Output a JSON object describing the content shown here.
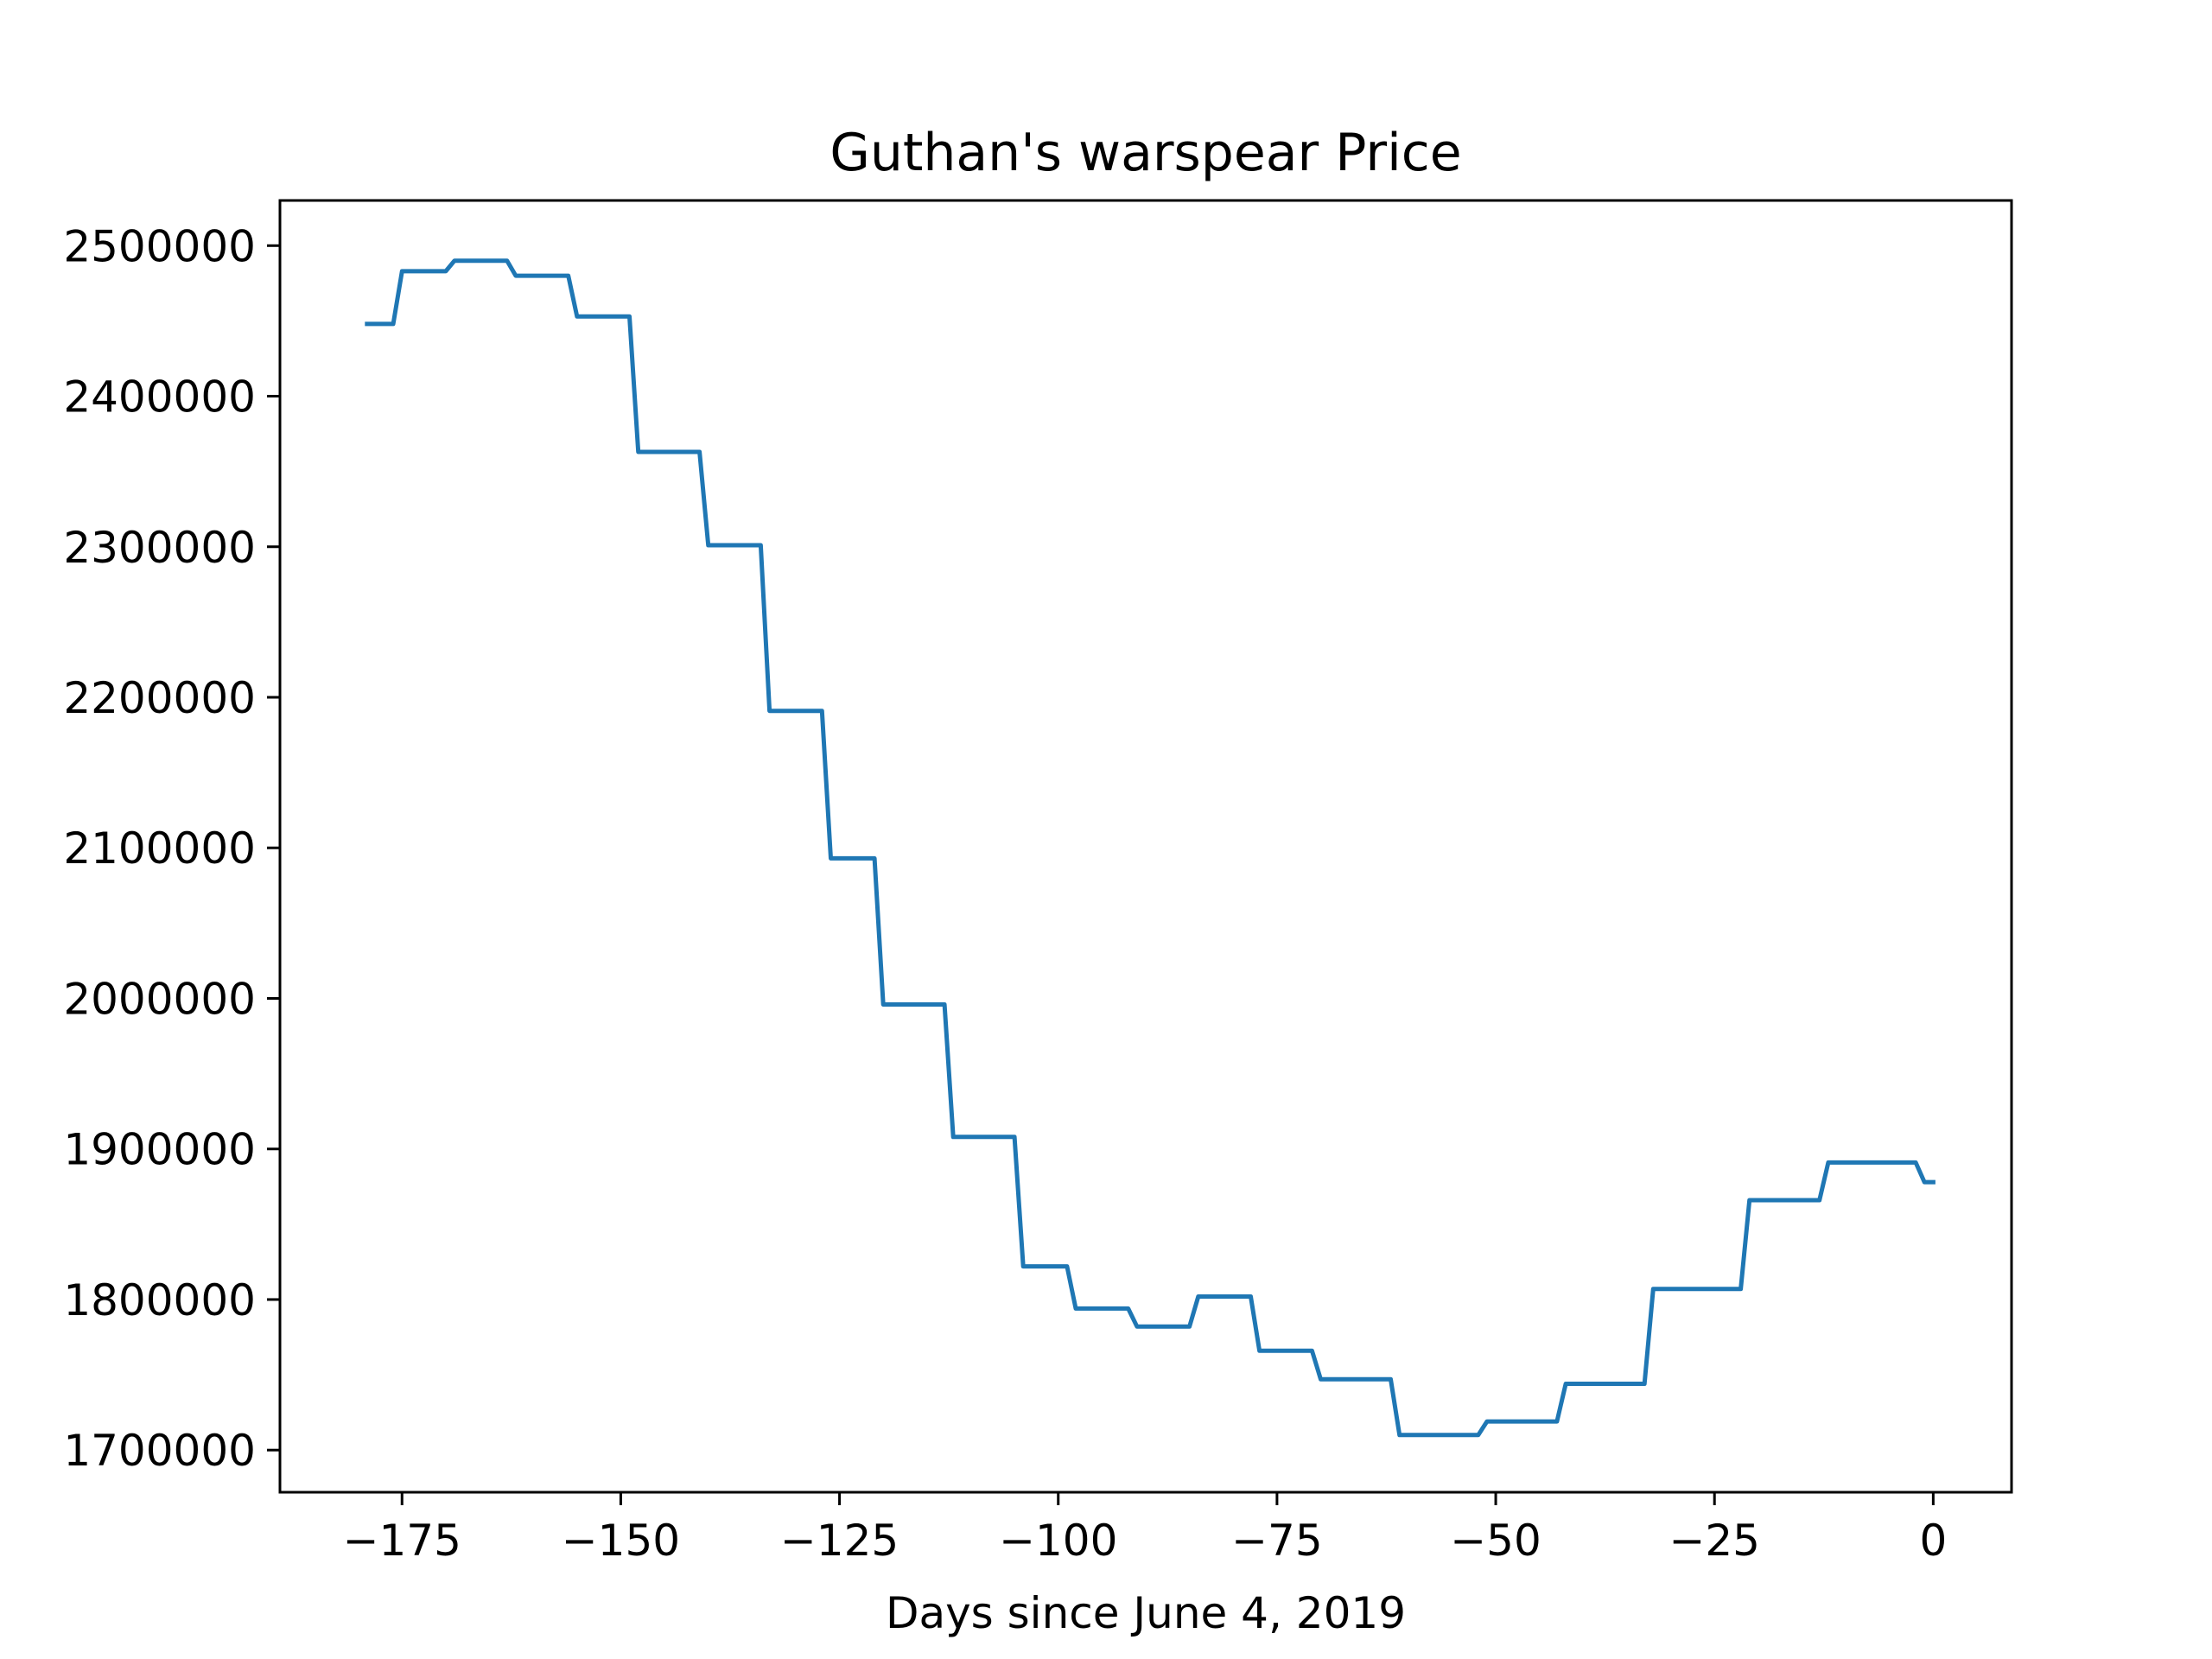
{
  "chart_data": {
    "type": "line",
    "title": "Guthan's warspear Price",
    "xlabel": "Days since June 4, 2019",
    "ylabel": "",
    "xlim": [
      -188.95,
      8.95
    ],
    "ylim": [
      1672000,
      2530000
    ],
    "xticks": [
      -175,
      -150,
      -125,
      -100,
      -75,
      -50,
      -25,
      0
    ],
    "xtick_labels": [
      "−175",
      "−150",
      "−125",
      "−100",
      "−75",
      "−50",
      "−25",
      "0"
    ],
    "yticks": [
      1700000,
      1800000,
      1900000,
      2000000,
      2100000,
      2200000,
      2300000,
      2400000,
      2500000
    ],
    "ytick_labels": [
      "1700000",
      "1800000",
      "1900000",
      "2000000",
      "2100000",
      "2200000",
      "2300000",
      "2400000",
      "2500000"
    ],
    "grid": false,
    "legend": "none",
    "series": [
      {
        "color": "#1f77b4",
        "x": [
          -179,
          -176,
          -175,
          -170,
          -169,
          -163,
          -162,
          -156,
          -155,
          -149,
          -148,
          -141,
          -140,
          -134,
          -133,
          -127,
          -126,
          -121,
          -120,
          -113,
          -112,
          -105,
          -104,
          -99,
          -98,
          -92,
          -91,
          -85,
          -84,
          -78,
          -77,
          -71,
          -70,
          -62,
          -61,
          -52,
          -51,
          -43,
          -42,
          -33,
          -32,
          -22,
          -21,
          -13,
          -12,
          -2,
          -1,
          0
        ],
        "y": [
          2448000,
          2448000,
          2483000,
          2483000,
          2490000,
          2490000,
          2480000,
          2480000,
          2453000,
          2453000,
          2363000,
          2363000,
          2301000,
          2301000,
          2191000,
          2191000,
          2093000,
          2093000,
          1996000,
          1996000,
          1908000,
          1908000,
          1822000,
          1822000,
          1794000,
          1794000,
          1782000,
          1782000,
          1802000,
          1802000,
          1766000,
          1766000,
          1747000,
          1747000,
          1710000,
          1710000,
          1719000,
          1719000,
          1744000,
          1744000,
          1807000,
          1807000,
          1866000,
          1866000,
          1891000,
          1891000,
          1878000,
          1878000
        ]
      }
    ]
  }
}
